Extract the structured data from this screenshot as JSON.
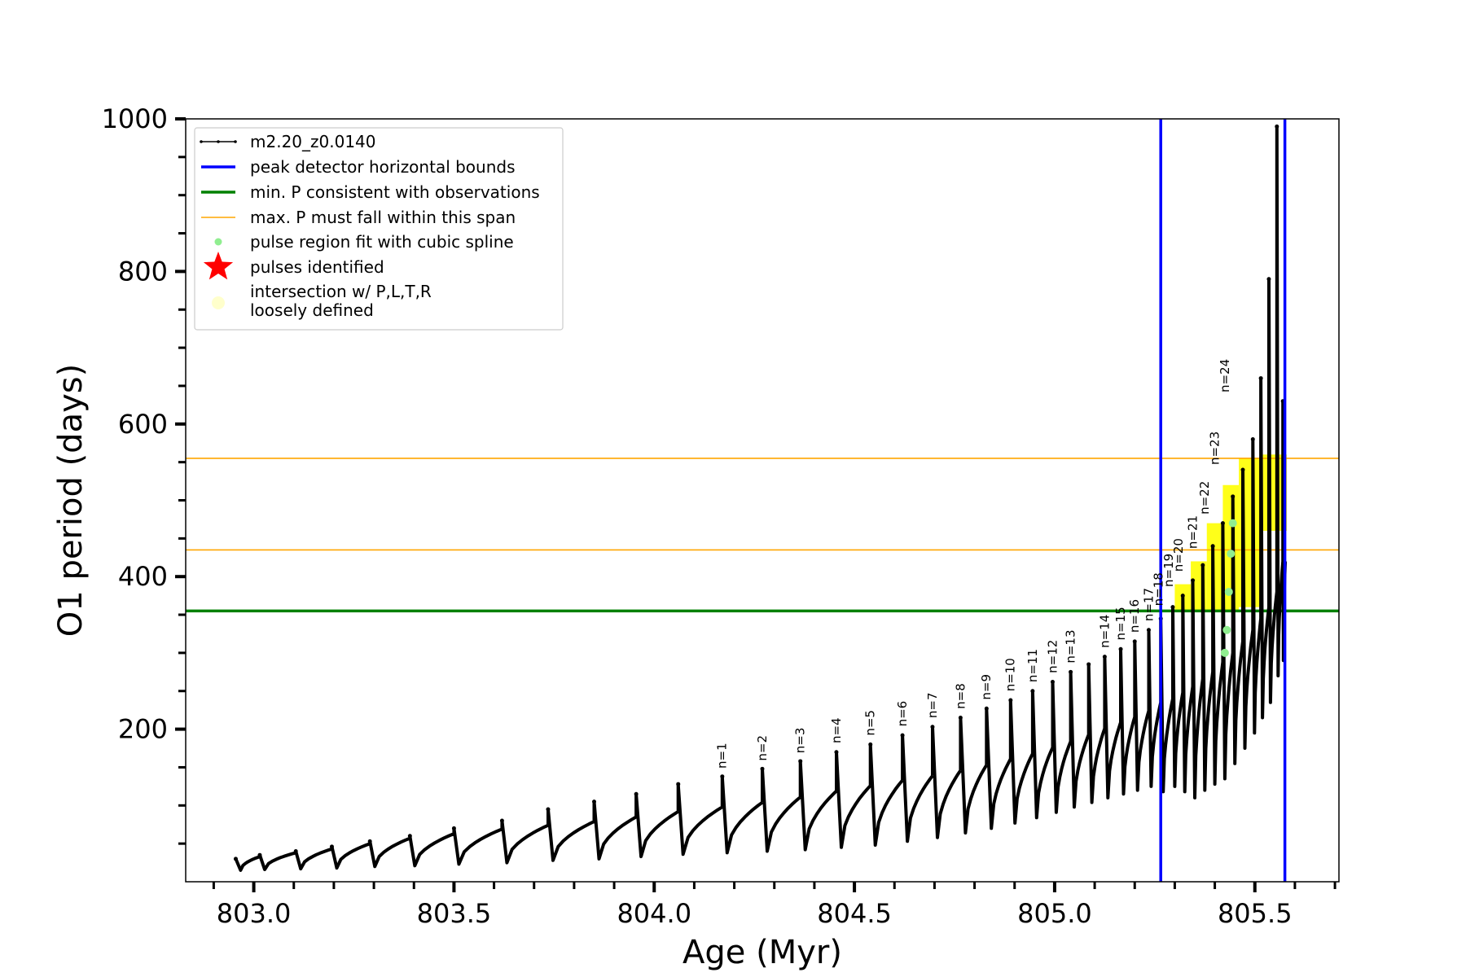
{
  "chart_data": {
    "type": "line",
    "title": "",
    "xlabel": "Age (Myr)",
    "ylabel": "O1 period (days)",
    "xlim": [
      802.83,
      805.71
    ],
    "ylim": [
      0,
      1000
    ],
    "x_ticks": [
      803.0,
      803.5,
      804.0,
      804.5,
      805.0,
      805.5
    ],
    "x_tick_labels": [
      "803.0",
      "803.5",
      "804.0",
      "804.5",
      "805.0",
      "805.5"
    ],
    "y_ticks": [
      200,
      400,
      600,
      800,
      1000
    ],
    "y_tick_labels": [
      "200",
      "400",
      "600",
      "800",
      "1000"
    ],
    "grid": false,
    "legend_position": "top-left",
    "legend": [
      {
        "label": "m2.20_z0.0140",
        "style": "line-with-dots",
        "color": "#000000"
      },
      {
        "label": "peak detector horizontal bounds",
        "style": "line",
        "color": "#0000ff"
      },
      {
        "label": "min. P consistent with observations",
        "style": "line",
        "color": "#008000"
      },
      {
        "label": "max. P must fall within this span",
        "style": "line",
        "color": "#ffa500"
      },
      {
        "label": "pulse region fit with cubic spline",
        "style": "dot",
        "color": "#90ee90"
      },
      {
        "label": "pulses identified",
        "style": "star",
        "color": "#ff0000"
      },
      {
        "label_lines": [
          "intersection w/ P,L,T,R",
          "loosely defined"
        ],
        "style": "big-dot",
        "color": "#ffffcc"
      }
    ],
    "vertical_lines": [
      {
        "name": "peak detector horizontal bounds",
        "x": 805.265,
        "color": "#0000ff"
      },
      {
        "name": "peak detector horizontal bounds",
        "x": 805.575,
        "color": "#0000ff"
      }
    ],
    "horizontal_lines": [
      {
        "name": "min. P consistent with observations",
        "y": 355,
        "color": "#008000"
      },
      {
        "name": "max. P must fall within this span",
        "y": 435,
        "color": "#ffa500"
      },
      {
        "name": "max. P must fall within this span",
        "y": 555,
        "color": "#ffa500"
      }
    ],
    "series": [
      {
        "name": "m2.20_z0.0140",
        "color": "#000000",
        "pulses": [
          {
            "x": 802.955,
            "peak": 30,
            "min": 15,
            "pre": 28
          },
          {
            "x": 803.015,
            "peak": 35,
            "min": 16,
            "pre": 33
          },
          {
            "x": 803.105,
            "peak": 40,
            "min": 17,
            "pre": 38
          },
          {
            "x": 803.195,
            "peak": 46,
            "min": 18,
            "pre": 43
          },
          {
            "x": 803.29,
            "peak": 53,
            "min": 20,
            "pre": 50
          },
          {
            "x": 803.39,
            "peak": 60,
            "min": 21,
            "pre": 57
          },
          {
            "x": 803.5,
            "peak": 70,
            "min": 23,
            "pre": 63
          },
          {
            "x": 803.62,
            "peak": 80,
            "min": 25,
            "pre": 69
          },
          {
            "x": 803.735,
            "peak": 95,
            "min": 28,
            "pre": 74
          },
          {
            "x": 803.85,
            "peak": 105,
            "min": 30,
            "pre": 79
          },
          {
            "x": 803.955,
            "peak": 115,
            "min": 33,
            "pre": 85
          },
          {
            "x": 804.06,
            "peak": 128,
            "min": 36,
            "pre": 92
          },
          {
            "x": 804.17,
            "peak": 138,
            "min": 38,
            "pre": 98
          },
          {
            "x": 804.27,
            "peak": 148,
            "min": 40,
            "pre": 104
          },
          {
            "x": 804.365,
            "peak": 158,
            "min": 42,
            "pre": 111
          },
          {
            "x": 804.455,
            "peak": 170,
            "min": 45,
            "pre": 119
          },
          {
            "x": 804.54,
            "peak": 180,
            "min": 48,
            "pre": 126
          },
          {
            "x": 804.62,
            "peak": 192,
            "min": 53,
            "pre": 133
          },
          {
            "x": 804.695,
            "peak": 203,
            "min": 58,
            "pre": 139
          },
          {
            "x": 804.765,
            "peak": 215,
            "min": 64,
            "pre": 146
          },
          {
            "x": 804.83,
            "peak": 227,
            "min": 70,
            "pre": 153
          },
          {
            "x": 804.89,
            "peak": 238,
            "min": 77,
            "pre": 161
          },
          {
            "x": 804.945,
            "peak": 250,
            "min": 84,
            "pre": 168
          },
          {
            "x": 804.995,
            "peak": 262,
            "min": 91,
            "pre": 176
          },
          {
            "x": 805.04,
            "peak": 275,
            "min": 98,
            "pre": 184
          },
          {
            "x": 805.085,
            "peak": 285,
            "min": 104,
            "pre": 193
          },
          {
            "x": 805.125,
            "peak": 295,
            "min": 110,
            "pre": 201
          },
          {
            "x": 805.165,
            "peak": 305,
            "min": 115,
            "pre": 209
          },
          {
            "x": 805.2,
            "peak": 315,
            "min": 120,
            "pre": 216
          },
          {
            "x": 805.235,
            "peak": 330,
            "min": 125,
            "pre": 224
          },
          {
            "x": 805.265,
            "peak": 345,
            "min": 118,
            "pre": 235
          },
          {
            "x": 805.295,
            "peak": 360,
            "min": 125,
            "pre": 240
          },
          {
            "x": 805.32,
            "peak": 375,
            "min": 118,
            "pre": 248
          },
          {
            "x": 805.345,
            "peak": 395,
            "min": 110,
            "pre": 256
          },
          {
            "x": 805.37,
            "peak": 415,
            "min": 120,
            "pre": 266
          },
          {
            "x": 805.395,
            "peak": 440,
            "min": 128,
            "pre": 275
          },
          {
            "x": 805.42,
            "peak": 470,
            "min": 135,
            "pre": 288
          },
          {
            "x": 805.445,
            "peak": 505,
            "min": 155,
            "pre": 300
          },
          {
            "x": 805.47,
            "peak": 540,
            "min": 175,
            "pre": 315
          },
          {
            "x": 805.495,
            "peak": 580,
            "min": 195,
            "pre": 330
          },
          {
            "x": 805.515,
            "peak": 660,
            "min": 215,
            "pre": 345
          },
          {
            "x": 805.535,
            "peak": 790,
            "min": 235,
            "pre": 360
          },
          {
            "x": 805.555,
            "peak": 990,
            "min": 270,
            "pre": 380
          },
          {
            "x": 805.57,
            "peak": 630,
            "min": 290,
            "pre": 420
          }
        ]
      },
      {
        "name": "pulse region fit with cubic spline",
        "color": "#90ee90",
        "points": [
          [
            805.425,
            300
          ],
          [
            805.43,
            330
          ],
          [
            805.435,
            380
          ],
          [
            805.44,
            430
          ],
          [
            805.445,
            470
          ]
        ]
      },
      {
        "name": "intersection w/ P,L,T,R loosely defined",
        "color": "#ffff00",
        "regions": [
          {
            "x0": 805.3,
            "x1": 805.34,
            "y0": 355,
            "y1": 390
          },
          {
            "x0": 805.34,
            "x1": 805.38,
            "y0": 355,
            "y1": 420
          },
          {
            "x0": 805.38,
            "x1": 805.42,
            "y0": 355,
            "y1": 470
          },
          {
            "x0": 805.42,
            "x1": 805.46,
            "y0": 355,
            "y1": 520
          },
          {
            "x0": 805.46,
            "x1": 805.52,
            "y0": 360,
            "y1": 555
          },
          {
            "x0": 805.52,
            "x1": 805.58,
            "y0": 460,
            "y1": 560
          }
        ]
      }
    ],
    "pulse_labels": [
      {
        "text": "n=1",
        "x": 804.18,
        "y": 142
      },
      {
        "text": "n=2",
        "x": 804.28,
        "y": 152
      },
      {
        "text": "n=3",
        "x": 804.375,
        "y": 162
      },
      {
        "text": "n=4",
        "x": 804.465,
        "y": 175
      },
      {
        "text": "n=5",
        "x": 804.55,
        "y": 185
      },
      {
        "text": "n=6",
        "x": 804.63,
        "y": 197
      },
      {
        "text": "n=7",
        "x": 804.705,
        "y": 208
      },
      {
        "text": "n=8",
        "x": 804.775,
        "y": 220
      },
      {
        "text": "n=9",
        "x": 804.84,
        "y": 232
      },
      {
        "text": "n=10",
        "x": 804.9,
        "y": 243
      },
      {
        "text": "n=11",
        "x": 804.955,
        "y": 255
      },
      {
        "text": "n=12",
        "x": 805.005,
        "y": 267
      },
      {
        "text": "n=13",
        "x": 805.05,
        "y": 280
      },
      {
        "text": "n=14",
        "x": 805.135,
        "y": 300
      },
      {
        "text": "n=15",
        "x": 805.175,
        "y": 310
      },
      {
        "text": "n=16",
        "x": 805.21,
        "y": 320
      },
      {
        "text": "n=17",
        "x": 805.245,
        "y": 335
      },
      {
        "text": "n=18",
        "x": 805.27,
        "y": 355
      },
      {
        "text": "n=19",
        "x": 805.295,
        "y": 380
      },
      {
        "text": "n=20",
        "x": 805.32,
        "y": 400
      },
      {
        "text": "n=21",
        "x": 805.355,
        "y": 430
      },
      {
        "text": "n=22",
        "x": 805.385,
        "y": 475
      },
      {
        "text": "n=23",
        "x": 805.41,
        "y": 540
      },
      {
        "text": "n=24",
        "x": 805.435,
        "y": 635
      }
    ]
  }
}
